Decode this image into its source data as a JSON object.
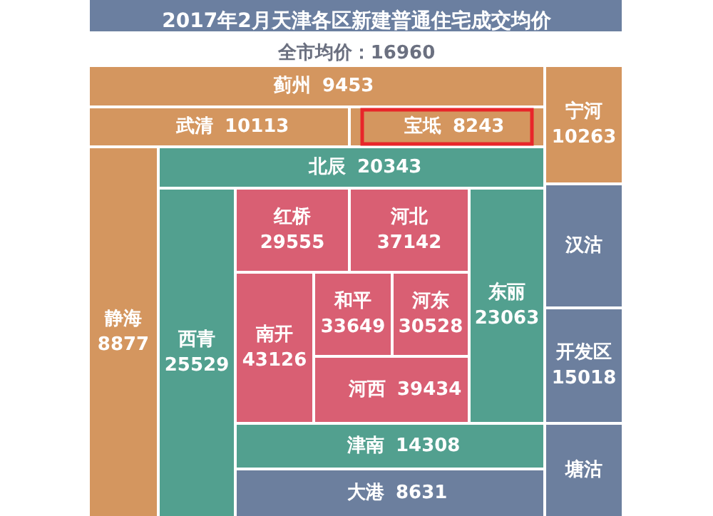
{
  "chart_data": {
    "type": "other",
    "title": "2017年2月天津各区新建普通住宅成交均价",
    "subtitle": "全市均价：16960",
    "categories": [
      "蓟州",
      "武清",
      "宝坻",
      "宁河",
      "静海",
      "北辰",
      "西青",
      "红桥",
      "河北",
      "东丽",
      "南开",
      "和平",
      "河东",
      "河西",
      "津南",
      "大港",
      "汉沽",
      "开发区",
      "塘沽"
    ],
    "values": [
      9453,
      10113,
      8243,
      10263,
      8877,
      20343,
      25529,
      29555,
      37142,
      23063,
      43126,
      33649,
      30528,
      39434,
      14308,
      8631,
      null,
      15018,
      null
    ],
    "data_labels": true,
    "colors": [
      "#d4965f",
      "#d4965f",
      "#d4965f",
      "#d4965f",
      "#d4965f",
      "#52a08f",
      "#52a08f",
      "#d95f73",
      "#d95f73",
      "#52a08f",
      "#d95f73",
      "#d95f73",
      "#d95f73",
      "#d95f73",
      "#52a08f",
      "#6c7f9e",
      "#6c7f9e",
      "#6c7f9e",
      "#6c7f9e"
    ]
  }
}
